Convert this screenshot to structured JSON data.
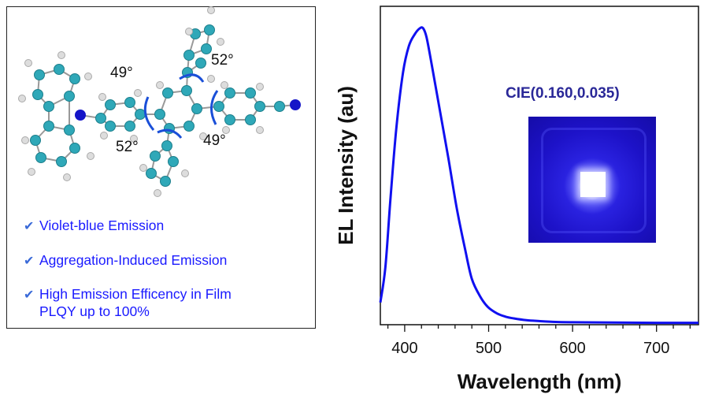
{
  "molecule_panel": {
    "angles": [
      "49°",
      "52°",
      "52°",
      "49°"
    ],
    "features": [
      "Violet-blue Emission",
      "Aggregation-Induced Emission",
      "High Emission Efficency in Film",
      "PLQY up to 100%"
    ],
    "check_icon": "checkmark-icon"
  },
  "inset": {
    "label": "CIE(0.160,0.035)"
  },
  "chart_data": {
    "type": "line",
    "title": "",
    "xlabel": "Wavelength (nm)",
    "ylabel": "EL Intensity (au)",
    "xlim": [
      371,
      750
    ],
    "ylim": [
      0,
      1.08
    ],
    "xticks": [
      400,
      500,
      600,
      700
    ],
    "grid": false,
    "color": "#1010f0",
    "series": [
      {
        "name": "EL",
        "x": [
          371,
          377,
          383,
          390,
          398,
          405,
          412,
          418,
          422,
          426,
          432,
          442,
          452,
          462,
          472,
          480,
          490,
          499,
          510,
          520,
          530,
          545,
          560,
          580,
          600,
          650,
          700,
          750
        ],
        "y": [
          0.07,
          0.19,
          0.42,
          0.66,
          0.85,
          0.94,
          0.98,
          1.0,
          1.0,
          0.97,
          0.88,
          0.72,
          0.56,
          0.39,
          0.25,
          0.15,
          0.09,
          0.055,
          0.033,
          0.022,
          0.016,
          0.01,
          0.007,
          0.004,
          0.003,
          0.002,
          0.001,
          0.001
        ]
      }
    ]
  }
}
